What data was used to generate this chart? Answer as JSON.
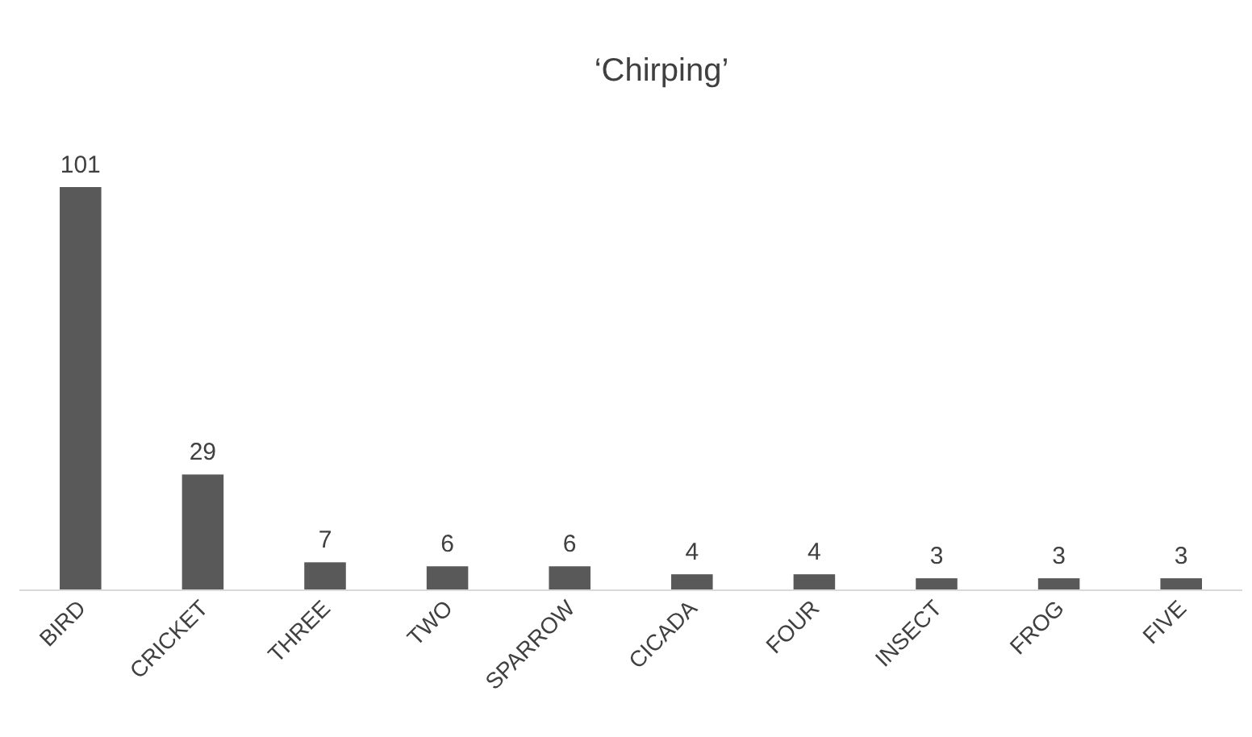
{
  "chart_data": {
    "type": "bar",
    "title": "‘Chirping’",
    "categories": [
      "BIRD",
      "CRICKET",
      "THREE",
      "TWO",
      "SPARROW",
      "CICADA",
      "FOUR",
      "INSECT",
      "FROG",
      "FIVE"
    ],
    "values": [
      101,
      29,
      7,
      6,
      6,
      4,
      4,
      3,
      3,
      3
    ],
    "color": "#595959",
    "data_labels": true
  }
}
